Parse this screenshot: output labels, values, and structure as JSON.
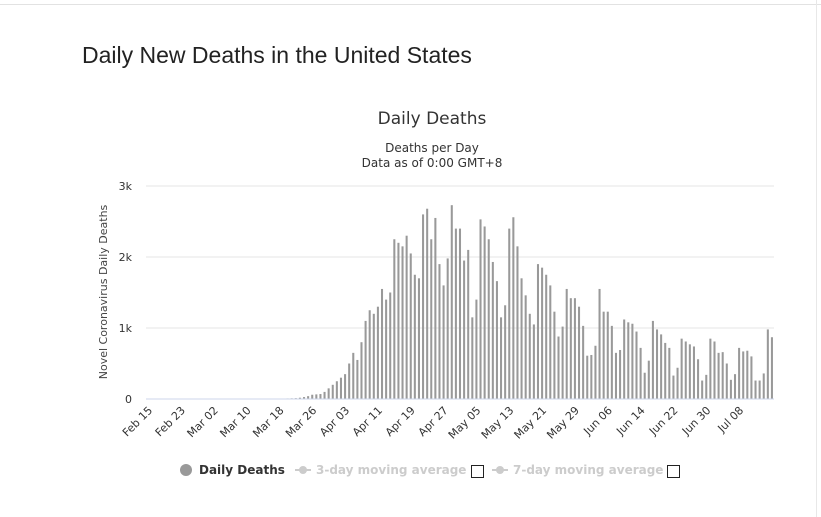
{
  "page": {
    "title": "Daily New Deaths in the United States"
  },
  "chart_data": {
    "type": "bar",
    "title": "Daily Deaths",
    "subtitle": "Deaths per Day",
    "subtitle2": "Data as of 0:00 GMT+8",
    "ylabel": "Novel Coronavirus Daily Deaths",
    "xlabel": "",
    "ylim": [
      0,
      3000
    ],
    "yticks": [
      0,
      1000,
      2000,
      3000
    ],
    "ytick_labels": [
      "0",
      "1k",
      "2k",
      "3k"
    ],
    "xtick_labels": [
      "Feb 15",
      "Feb 23",
      "Mar 02",
      "Mar 10",
      "Mar 18",
      "Mar 26",
      "Apr 03",
      "Apr 11",
      "Apr 19",
      "Apr 27",
      "May 05",
      "May 13",
      "May 21",
      "May 29",
      "Jun 06",
      "Jun 14",
      "Jun 22",
      "Jun 30",
      "Jul 08"
    ],
    "grid": true,
    "bar_color": "#999999",
    "series": [
      {
        "name": "Daily Deaths",
        "values": [
          0,
          0,
          0,
          0,
          0,
          0,
          0,
          0,
          0,
          0,
          0,
          0,
          0,
          0,
          0,
          1,
          0,
          0,
          0,
          0,
          0,
          0,
          0,
          0,
          0,
          0,
          0,
          0,
          0,
          1,
          1,
          2,
          3,
          5,
          8,
          10,
          12,
          18,
          27,
          40,
          60,
          65,
          70,
          100,
          150,
          200,
          250,
          300,
          350,
          500,
          650,
          550,
          800,
          1100,
          1250,
          1200,
          1300,
          1550,
          1400,
          1500,
          2250,
          2200,
          2150,
          2300,
          2050,
          1750,
          1700,
          2600,
          2680,
          2250,
          2550,
          1900,
          1600,
          1980,
          2730,
          2400,
          2400,
          1950,
          2100,
          1150,
          1400,
          2530,
          2430,
          2250,
          1930,
          1660,
          1150,
          1320,
          2400,
          2560,
          2150,
          1700,
          1460,
          1200,
          1050,
          1900,
          1850,
          1750,
          1600,
          1230,
          880,
          1020,
          1550,
          1420,
          1420,
          1300,
          1030,
          610,
          620,
          750,
          1550,
          1230,
          1230,
          1030,
          650,
          690,
          1120,
          1080,
          1060,
          950,
          720,
          370,
          540,
          1100,
          980,
          910,
          790,
          720,
          330,
          440,
          850,
          810,
          770,
          740,
          560,
          260,
          340,
          850,
          810,
          650,
          660,
          500,
          270,
          350,
          720,
          670,
          680,
          600,
          260,
          260,
          360,
          980,
          870
        ]
      },
      {
        "name": "3-day moving average",
        "visible": false
      },
      {
        "name": "7-day moving average",
        "visible": false
      }
    ],
    "legend_position": "bottom"
  }
}
